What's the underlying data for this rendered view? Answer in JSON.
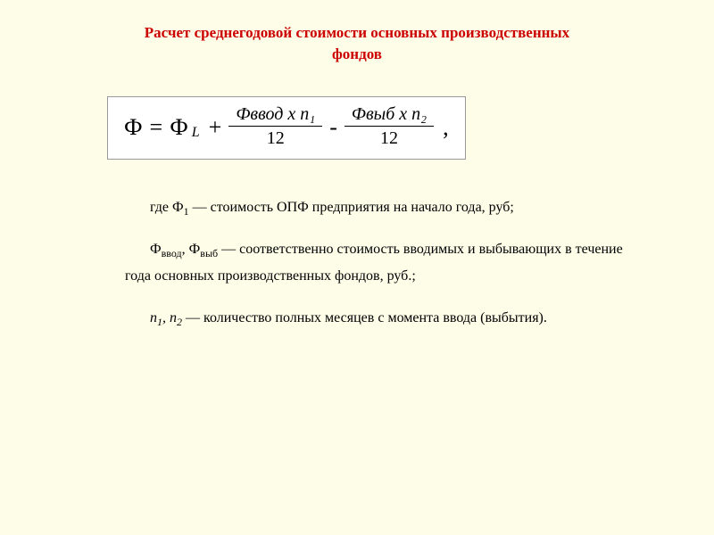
{
  "title": "Расчет среднегодовой стоимости основных производственных фондов",
  "formula": {
    "lhs": "Ф",
    "eq": "=",
    "phi_sub": "Ф",
    "sub_L": "L",
    "plus": "+",
    "frac1_num": "Фввод х n₁",
    "frac1_den": "12",
    "minus": "-",
    "frac2_num": "Фвыб х n₂",
    "frac2_den": "12",
    "comma": ","
  },
  "explanation": {
    "line1_prefix": "где Ф",
    "line1_sub": "1",
    "line1_rest": " — стоимость ОПФ предприятия на начало года, руб;",
    "line2_phi1": "Ф",
    "line2_sub1": "ввод",
    "line2_sep": ", ",
    "line2_phi2": "Ф",
    "line2_sub2": "выб",
    "line2_rest": " — соответственно стоимость вводимых и выбывающих в течение года основных производственных фондов, руб.;",
    "line3_n1": "n",
    "line3_s1": "1",
    "line3_sep": ", ",
    "line3_n2": "n",
    "line3_s2": "2",
    "line3_rest": " — количество полных месяцев с момента ввода (выбытия)."
  },
  "colors": {
    "background": "#fdfde8",
    "title": "#cc0000",
    "text": "#000000",
    "formula_bg": "#ffffff",
    "formula_border": "#999999"
  }
}
